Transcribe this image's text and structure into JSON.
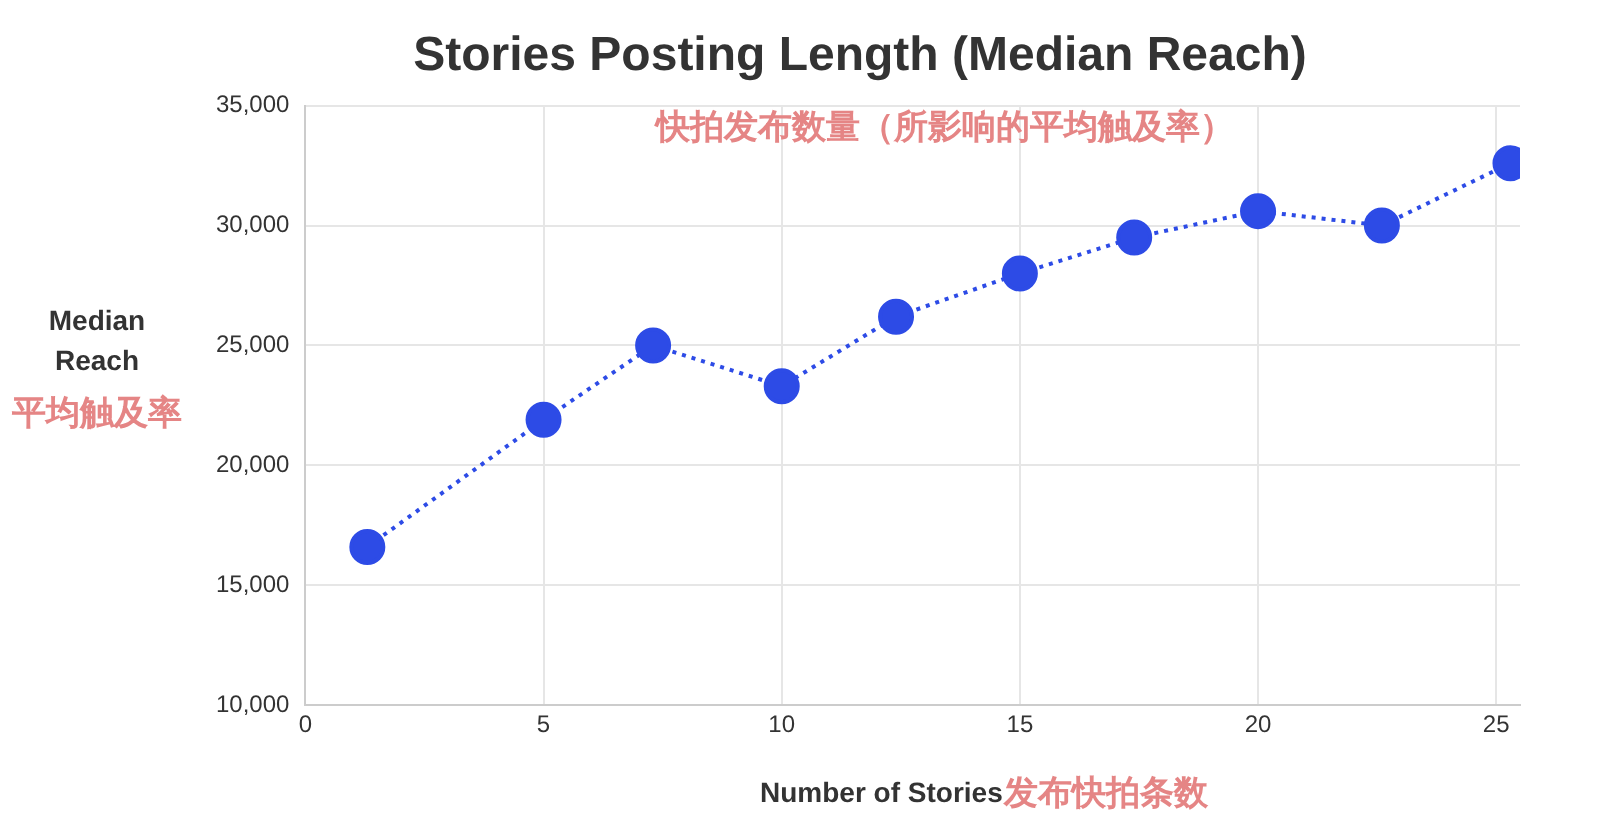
{
  "chart_data": {
    "type": "line",
    "title": "Stories Posting Length (Median Reach)",
    "xlabel": "Number of Stories",
    "ylabel": "Median Reach",
    "annotations": [
      "快拍发布数量（所影响的平均触及率）",
      "平均触及率",
      "发布快拍条数"
    ],
    "x": [
      1.3,
      5,
      7.3,
      10,
      12.4,
      15,
      17.4,
      20,
      22.6,
      25.3
    ],
    "series": [
      {
        "color": "#2d4be6",
        "values": [
          16600,
          21900,
          25000,
          23300,
          26200,
          28000,
          29500,
          30600,
          30000,
          32600
        ]
      }
    ],
    "xlim": [
      0,
      25.5
    ],
    "xticks": [
      0,
      5,
      10,
      15,
      20,
      25
    ],
    "ylim": [
      10000,
      35000
    ],
    "yticks": [
      {
        "value": 10000,
        "label": "10,000"
      },
      {
        "value": 15000,
        "label": "15,000"
      },
      {
        "value": 20000,
        "label": "20,000"
      },
      {
        "value": 25000,
        "label": "25,000"
      },
      {
        "value": 30000,
        "label": "30,000"
      },
      {
        "value": 35000,
        "label": "35,000"
      }
    ],
    "grid": true,
    "legend": false,
    "marker": "circle",
    "line_style": "dotted"
  }
}
